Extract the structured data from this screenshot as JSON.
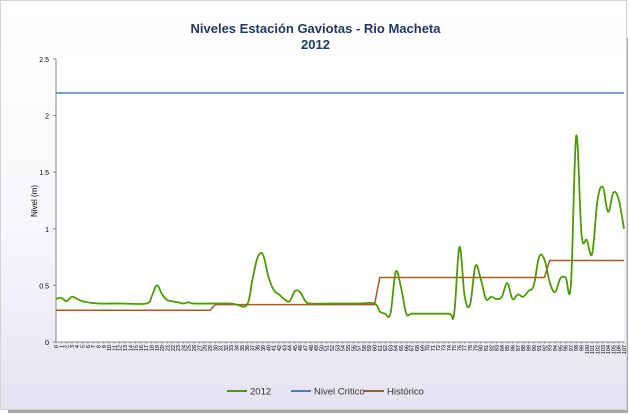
{
  "chart_data": {
    "type": "line",
    "title": "Niveles Estación Gaviotas - Rio Macheta",
    "subtitle": "2012",
    "ylabel": "Nivel (m)",
    "xlabel": "",
    "ylim": [
      0,
      2.5
    ],
    "y_ticks": [
      "0",
      "0.5",
      "1",
      "1.5",
      "2",
      "2.5"
    ],
    "xlim": [
      0,
      107
    ],
    "x_tick_labels": [
      "0",
      "1",
      "2",
      "3",
      "4",
      "5",
      "6",
      "7",
      "8",
      "9",
      "10",
      "11",
      "12",
      "13",
      "14",
      "15",
      "16",
      "17",
      "18",
      "19",
      "20",
      "21",
      "22",
      "23",
      "24",
      "25",
      "26",
      "27",
      "28",
      "29",
      "30",
      "31",
      "32",
      "33",
      "34",
      "35",
      "36",
      "37",
      "38",
      "39",
      "40",
      "41",
      "42",
      "43",
      "44",
      "45",
      "46",
      "47",
      "48",
      "49",
      "50",
      "51",
      "52",
      "53",
      "54",
      "55",
      "56",
      "57",
      "58",
      "59",
      "60",
      "61",
      "62",
      "63",
      "64",
      "65",
      "66",
      "67",
      "68",
      "69",
      "70",
      "71",
      "72",
      "73",
      "74",
      "75",
      "76",
      "77",
      "78",
      "79",
      "80",
      "81",
      "82",
      "83",
      "84",
      "85",
      "86",
      "87",
      "88",
      "89",
      "90",
      "91",
      "92",
      "93",
      "94",
      "95",
      "96",
      "97",
      "98",
      "99",
      "100",
      "101",
      "102",
      "103",
      "104",
      "105",
      "106",
      "107"
    ],
    "grid": false,
    "legend_position": "bottom",
    "series": [
      {
        "name": "2012",
        "color": "#4e9a06",
        "points": [
          [
            0,
            0.38
          ],
          [
            1,
            0.39
          ],
          [
            2,
            0.36
          ],
          [
            3,
            0.4
          ],
          [
            4,
            0.38
          ],
          [
            5,
            0.36
          ],
          [
            6,
            0.35
          ],
          [
            8,
            0.34
          ],
          [
            12,
            0.34
          ],
          [
            17,
            0.34
          ],
          [
            18,
            0.4
          ],
          [
            19,
            0.5
          ],
          [
            20,
            0.42
          ],
          [
            21,
            0.37
          ],
          [
            23,
            0.35
          ],
          [
            24,
            0.34
          ],
          [
            25,
            0.35
          ],
          [
            26,
            0.34
          ],
          [
            30,
            0.34
          ],
          [
            33,
            0.34
          ],
          [
            34,
            0.33
          ],
          [
            36,
            0.33
          ],
          [
            37,
            0.55
          ],
          [
            38,
            0.75
          ],
          [
            39,
            0.77
          ],
          [
            40,
            0.58
          ],
          [
            41,
            0.46
          ],
          [
            42,
            0.42
          ],
          [
            43,
            0.38
          ],
          [
            44,
            0.36
          ],
          [
            45,
            0.45
          ],
          [
            46,
            0.44
          ],
          [
            47,
            0.36
          ],
          [
            48,
            0.34
          ],
          [
            52,
            0.34
          ],
          [
            57,
            0.34
          ],
          [
            60,
            0.34
          ],
          [
            61,
            0.27
          ],
          [
            62,
            0.25
          ],
          [
            63,
            0.25
          ],
          [
            64,
            0.62
          ],
          [
            65,
            0.48
          ],
          [
            66,
            0.25
          ],
          [
            67,
            0.25
          ],
          [
            70,
            0.25
          ],
          [
            74,
            0.25
          ],
          [
            75,
            0.25
          ],
          [
            76,
            0.84
          ],
          [
            77,
            0.4
          ],
          [
            78,
            0.33
          ],
          [
            79,
            0.67
          ],
          [
            80,
            0.56
          ],
          [
            81,
            0.38
          ],
          [
            82,
            0.4
          ],
          [
            83,
            0.38
          ],
          [
            84,
            0.4
          ],
          [
            85,
            0.52
          ],
          [
            86,
            0.38
          ],
          [
            87,
            0.42
          ],
          [
            88,
            0.4
          ],
          [
            89,
            0.45
          ],
          [
            90,
            0.5
          ],
          [
            91,
            0.75
          ],
          [
            92,
            0.73
          ],
          [
            93,
            0.53
          ],
          [
            94,
            0.44
          ],
          [
            95,
            0.56
          ],
          [
            96,
            0.57
          ],
          [
            97,
            0.51
          ],
          [
            98,
            1.82
          ],
          [
            99,
            0.95
          ],
          [
            100,
            0.9
          ],
          [
            101,
            0.78
          ],
          [
            102,
            1.25
          ],
          [
            103,
            1.37
          ],
          [
            104,
            1.15
          ],
          [
            105,
            1.32
          ],
          [
            106,
            1.26
          ],
          [
            107,
            1.0
          ]
        ]
      },
      {
        "name": "Nivel Critico",
        "color": "#4a7ebb",
        "points": [
          [
            0,
            2.2
          ],
          [
            107,
            2.2
          ]
        ]
      },
      {
        "name": "Histórico",
        "color": "#a55a2a",
        "points": [
          [
            0,
            0.28
          ],
          [
            29,
            0.28
          ],
          [
            30,
            0.33
          ],
          [
            60,
            0.33
          ],
          [
            61,
            0.57
          ],
          [
            92,
            0.57
          ],
          [
            93,
            0.72
          ],
          [
            107,
            0.72
          ]
        ]
      }
    ]
  }
}
